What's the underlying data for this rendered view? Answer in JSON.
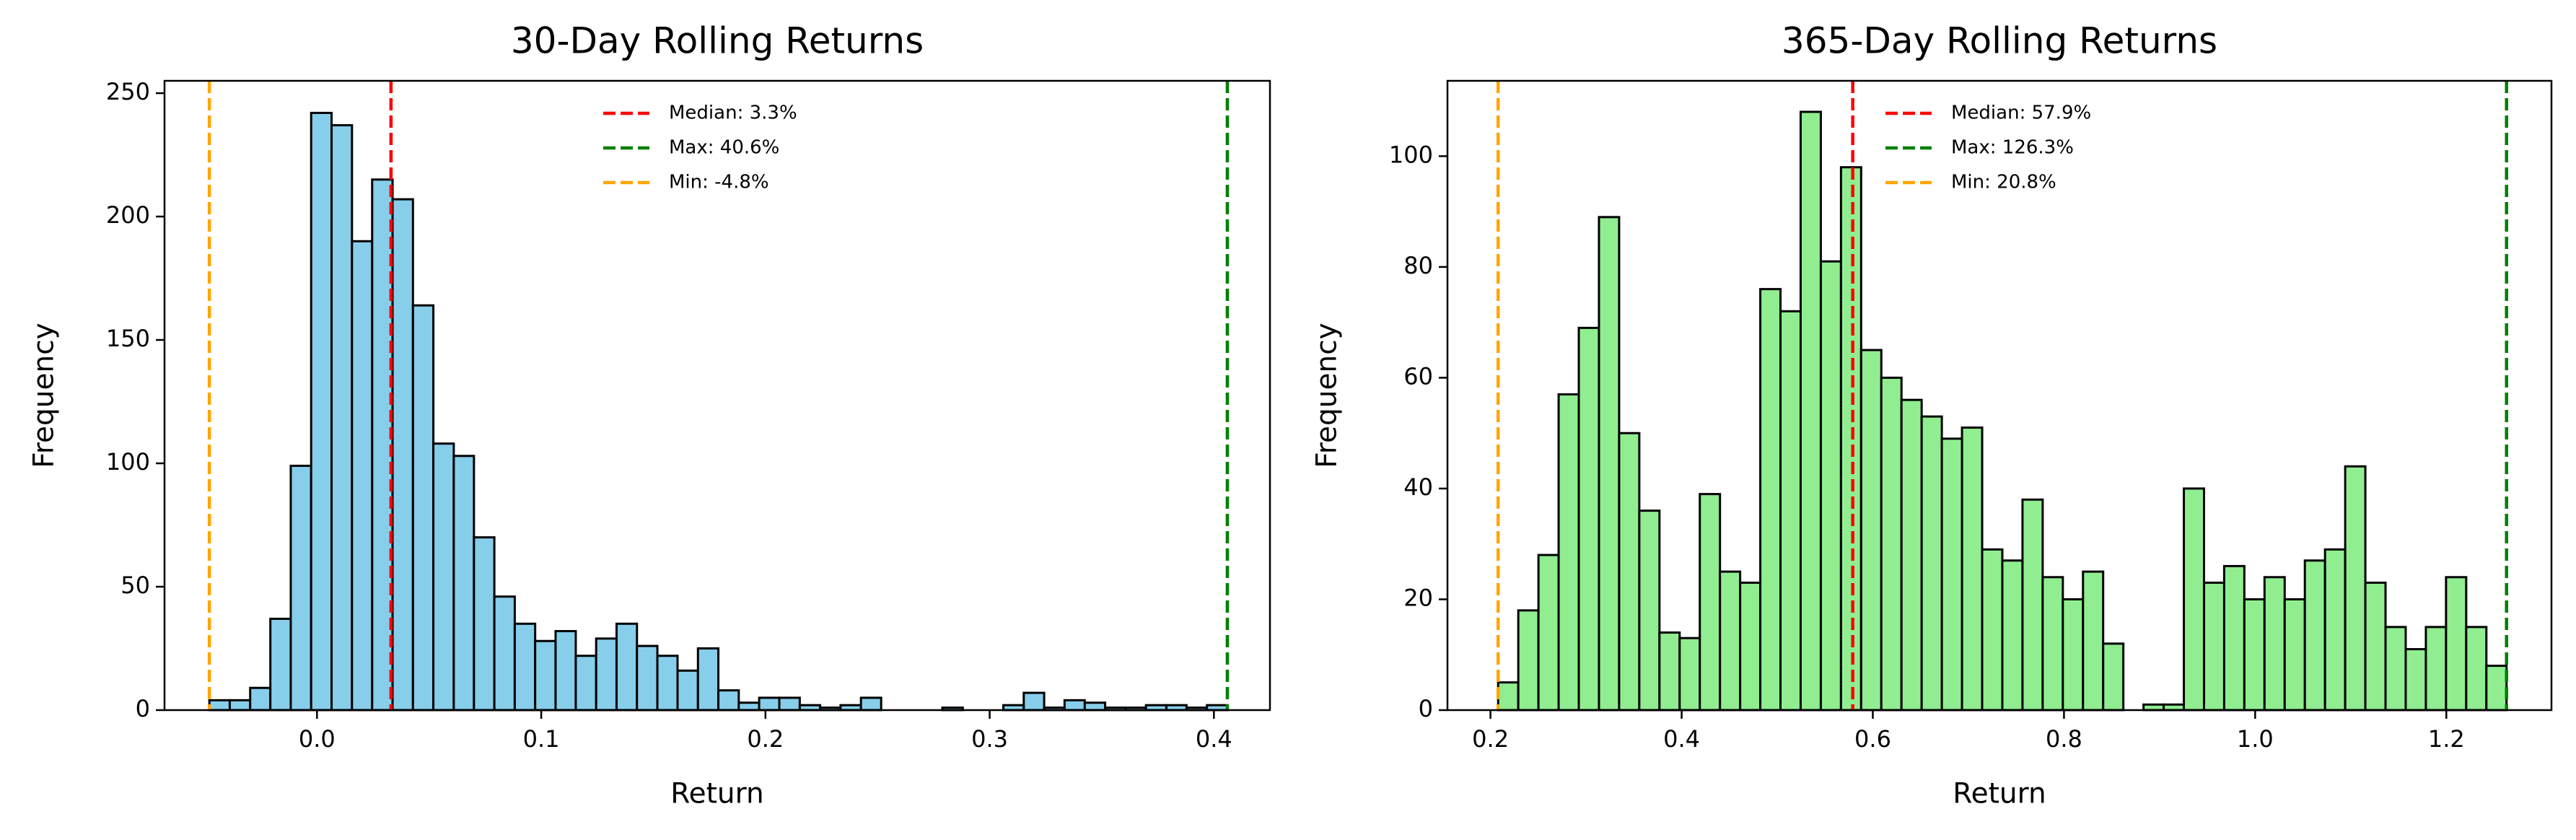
{
  "chart_data": [
    {
      "type": "histogram",
      "title": "30-Day Rolling Returns",
      "xlabel": "Return",
      "ylabel": "Frequency",
      "bins": [
        -0.048,
        -0.0389,
        -0.0298,
        -0.0208,
        -0.0117,
        -0.0026,
        0.0065,
        0.0156,
        0.0246,
        0.0337,
        0.0428,
        0.0519,
        0.061,
        0.07,
        0.0791,
        0.0882,
        0.0973,
        0.1064,
        0.1154,
        0.1245,
        0.1336,
        0.1427,
        0.1518,
        0.1608,
        0.1699,
        0.179,
        0.1881,
        0.1972,
        0.2062,
        0.2153,
        0.2244,
        0.2335,
        0.2426,
        0.2516,
        0.2607,
        0.2698,
        0.2789,
        0.288,
        0.297,
        0.3061,
        0.3152,
        0.3243,
        0.3334,
        0.3424,
        0.3515,
        0.3606,
        0.3697,
        0.3788,
        0.3878,
        0.3969,
        0.406
      ],
      "counts": [
        4,
        4,
        9,
        37,
        99,
        242,
        237,
        190,
        215,
        207,
        164,
        108,
        103,
        70,
        46,
        35,
        28,
        32,
        22,
        29,
        35,
        26,
        22,
        16,
        25,
        8,
        3,
        5,
        5,
        2,
        1,
        2,
        5,
        0,
        0,
        0,
        1,
        0,
        0,
        2,
        7,
        1,
        4,
        3,
        1,
        1,
        2,
        2,
        1,
        2
      ],
      "color": "#87ceeb",
      "edgecolor": "#000000",
      "xlim": [
        -0.068,
        0.425
      ],
      "ylim": [
        0,
        255
      ],
      "xticks": [
        {
          "value": 0,
          "label": "0.0"
        },
        0.1,
        0.2,
        0.3,
        0.4
      ],
      "yticks": [
        0,
        50,
        100,
        150,
        200,
        250
      ],
      "lines": [
        {
          "value": 0.033,
          "label": "Median: 3.3%",
          "color": "#ff0000"
        },
        {
          "value": 0.406,
          "label": "Max: 40.6%",
          "color": "#008000"
        },
        {
          "value": -0.048,
          "label": "Min: -4.8%",
          "color": "#ffa500"
        }
      ],
      "legend": "upper center"
    },
    {
      "type": "histogram",
      "title": "365-Day Rolling Returns",
      "xlabel": "Return",
      "ylabel": "Frequency",
      "bins": [
        0.208,
        0.2291,
        0.2502,
        0.2713,
        0.2924,
        0.3135,
        0.3346,
        0.3557,
        0.3768,
        0.3979,
        0.419,
        0.4401,
        0.4612,
        0.4823,
        0.5034,
        0.5245,
        0.5456,
        0.5667,
        0.5878,
        0.6089,
        0.63,
        0.6511,
        0.6722,
        0.6933,
        0.7144,
        0.7355,
        0.7566,
        0.7777,
        0.7988,
        0.8199,
        0.841,
        0.8621,
        0.8832,
        0.9043,
        0.9254,
        0.9465,
        0.9676,
        0.9887,
        1.0098,
        1.0309,
        1.052,
        1.0731,
        1.0942,
        1.1153,
        1.1364,
        1.1575,
        1.1786,
        1.1997,
        1.2208,
        1.2419,
        1.263
      ],
      "counts": [
        5,
        18,
        28,
        57,
        69,
        89,
        50,
        36,
        14,
        13,
        39,
        25,
        23,
        76,
        72,
        108,
        81,
        98,
        65,
        60,
        56,
        53,
        49,
        51,
        29,
        27,
        38,
        24,
        20,
        25,
        12,
        0,
        1,
        1,
        40,
        23,
        26,
        20,
        24,
        20,
        27,
        29,
        44,
        23,
        15,
        11,
        15,
        24,
        15,
        8
      ],
      "color": "#90ee90",
      "edgecolor": "#000000",
      "xlim": [
        0.155,
        1.31
      ],
      "ylim": [
        0,
        113.6
      ],
      "xticks": [
        0.2,
        0.4,
        0.6,
        0.8,
        {
          "value": 1,
          "label": "1.0"
        },
        1.2
      ],
      "yticks": [
        0,
        20,
        40,
        60,
        80,
        100
      ],
      "lines": [
        {
          "value": 0.579,
          "label": "Median: 57.9%",
          "color": "#ff0000"
        },
        {
          "value": 1.263,
          "label": "Max: 126.3%",
          "color": "#008000"
        },
        {
          "value": 0.208,
          "label": "Min: 20.8%",
          "color": "#ffa500"
        }
      ],
      "legend": "upper center"
    }
  ]
}
